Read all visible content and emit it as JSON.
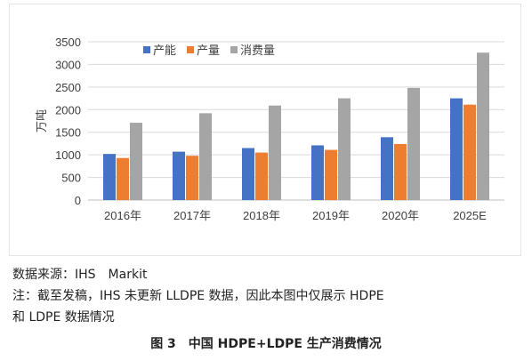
{
  "chart_data": {
    "type": "bar",
    "categories": [
      "2016年",
      "2017年",
      "2018年",
      "2019年",
      "2020年",
      "2025E"
    ],
    "series": [
      {
        "name": "产能",
        "color": "#4472c4",
        "values": [
          1020,
          1070,
          1150,
          1210,
          1390,
          2250
        ]
      },
      {
        "name": "产量",
        "color": "#ed7d31",
        "values": [
          930,
          980,
          1050,
          1110,
          1240,
          2110
        ]
      },
      {
        "name": "消费量",
        "color": "#a5a5a5",
        "values": [
          1710,
          1920,
          2090,
          2250,
          2480,
          3260
        ]
      }
    ],
    "title": "",
    "xlabel": "",
    "ylabel": "万吨",
    "ylim": [
      0,
      3500
    ],
    "yticks": [
      0,
      500,
      1000,
      1500,
      2000,
      2500,
      3000,
      3500
    ],
    "grid": true,
    "legend_position": "top-left"
  },
  "source_text": "数据来源：IHS　Markit",
  "note_line_1": "注：截至发稿，IHS 未更新 LLDPE 数据，因此本图中仅展示 HDPE",
  "note_line_2": "和 LDPE 数据情况",
  "caption": "图 3　中国 HDPE+LDPE 生产消费情况"
}
